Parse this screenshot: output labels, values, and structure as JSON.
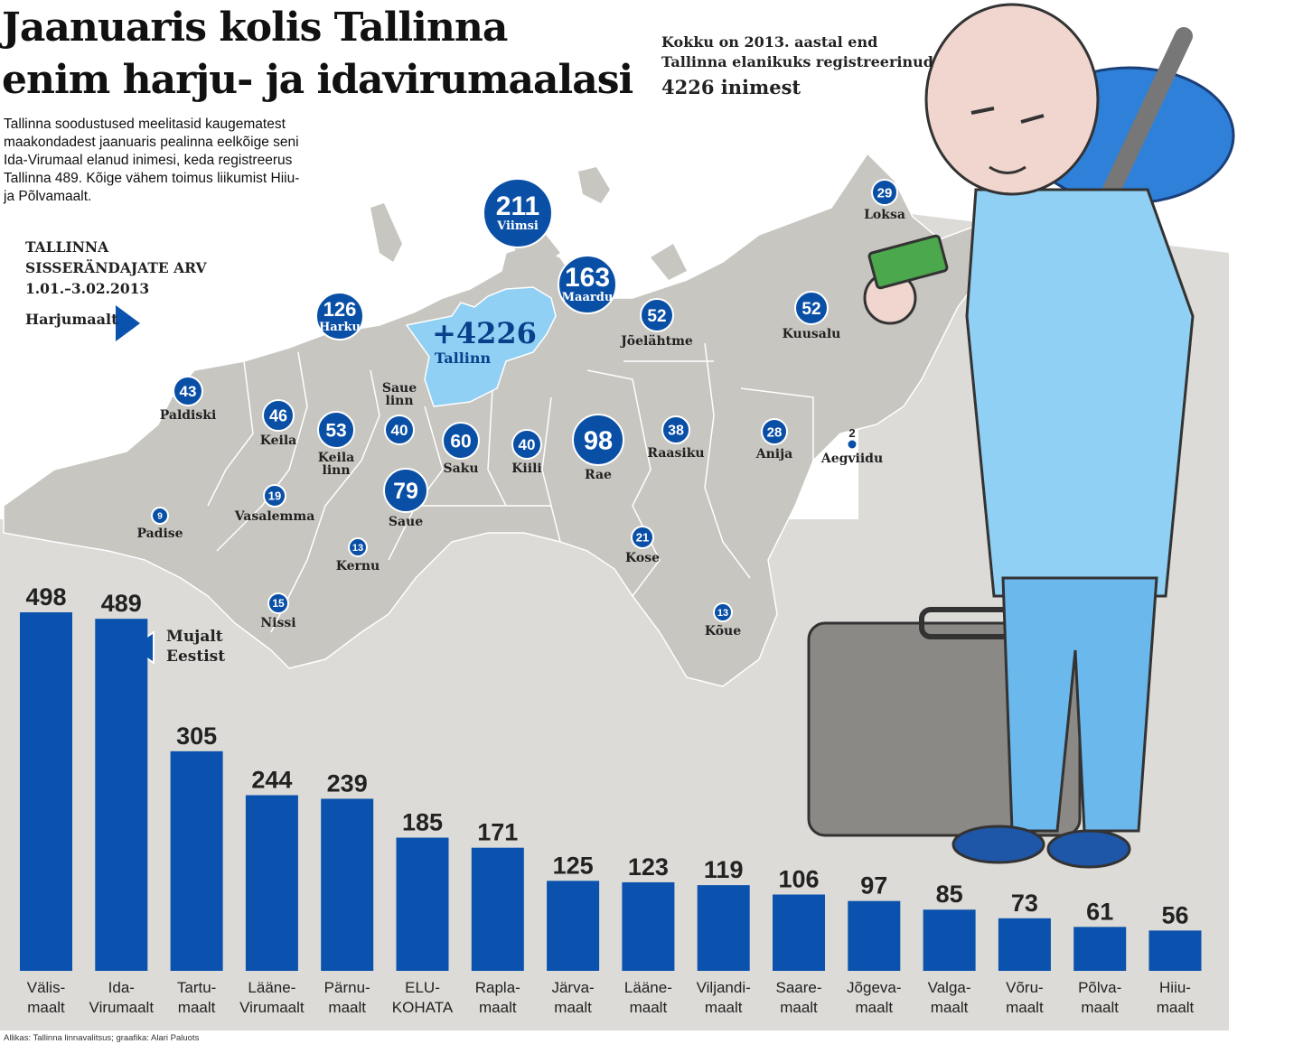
{
  "header": {
    "title_line1": "Jaanuaris kolis Tallinna",
    "title_line2": "enim harju- ja idavirumaalasi",
    "intro_lines": [
      "Tallinna soodustused meelitasid kaugematest",
      "maakondadest jaanuaris pealinna eelkõige seni",
      "Ida-Virumaal elanud inimesi, keda registreerus",
      "Tallinna 489. Kõige vähem toimus liikumist Hiiu-",
      "ja Põlvamaalt."
    ]
  },
  "total_note": {
    "line1": "Kokku on 2013. aastal end",
    "line2": "Tallinna elanikuks registreerinud",
    "line3": "4226 inimest"
  },
  "subtitle": {
    "line1": "TALLINNA",
    "line2": "SISSERÄNDAJATE ARV",
    "line3": "1.01.–3.02.2013"
  },
  "harjumaalt_label": "Harjumaalt",
  "mujalt_line1": "Mujalt",
  "mujalt_line2": "Eestist",
  "source": "Allikas: Tallinna linnavalitsus; graafika: Alari Paluots",
  "map": {
    "tallinn_value": "+4226",
    "tallinn_name": "Tallinn",
    "places": [
      {
        "name": "Viimsi",
        "value": "211"
      },
      {
        "name": "Maardu",
        "value": "163"
      },
      {
        "name": "Harku",
        "value": "126"
      },
      {
        "name": "Rae",
        "value": "98"
      },
      {
        "name": "Saue",
        "value": "79"
      },
      {
        "name": "Saku",
        "value": "60"
      },
      {
        "name": "Keila linn",
        "value": "53"
      },
      {
        "name": "Jõelähtme",
        "value": "52"
      },
      {
        "name": "Kuusalu",
        "value": "52"
      },
      {
        "name": "Keila",
        "value": "46"
      },
      {
        "name": "Paldiski",
        "value": "43"
      },
      {
        "name": "Saue linn",
        "value": "40"
      },
      {
        "name": "Kiili",
        "value": "40"
      },
      {
        "name": "Raasiku",
        "value": "38"
      },
      {
        "name": "Loksa",
        "value": "29"
      },
      {
        "name": "Anija",
        "value": "28"
      },
      {
        "name": "Kose",
        "value": "21"
      },
      {
        "name": "Vasalemma",
        "value": "19"
      },
      {
        "name": "Nissi",
        "value": "15"
      },
      {
        "name": "Kernu",
        "value": "13"
      },
      {
        "name": "Kõue",
        "value": "13"
      },
      {
        "name": "Padise",
        "value": "9"
      },
      {
        "name": "Aegviidu",
        "value": "2"
      }
    ]
  },
  "colors": {
    "bar": "#0a52ad",
    "bubble": "#0a4fa6",
    "tallinn": "#8fd0f4",
    "map_land": "#c6c4bf",
    "background": "#dddcd8"
  },
  "chart_data": {
    "type": "bar",
    "categories": [
      "Välis-maalt",
      "Ida-Virumaalt",
      "Tartu-maalt",
      "Lääne-Virumaalt",
      "Pärnu-maalt",
      "ELU-KOHATA",
      "Rapla-maalt",
      "Järva-maalt",
      "Lääne-maalt",
      "Viljandi-maalt",
      "Saare-maalt",
      "Jõgeva-maalt",
      "Valga-maalt",
      "Võru-maalt",
      "Põlva-maalt",
      "Hiiu-maalt"
    ],
    "labels": [
      [
        "Välis-",
        "maalt"
      ],
      [
        "Ida-",
        "Virumaalt"
      ],
      [
        "Tartu-",
        "maalt"
      ],
      [
        "Lääne-",
        "Virumaalt"
      ],
      [
        "Pärnu-",
        "maalt"
      ],
      [
        "ELU-",
        "KOHATA"
      ],
      [
        "Rapla-",
        "maalt"
      ],
      [
        "Järva-",
        "maalt"
      ],
      [
        "Lääne-",
        "maalt"
      ],
      [
        "Viljandi-",
        "maalt"
      ],
      [
        "Saare-",
        "maalt"
      ],
      [
        "Jõgeva-",
        "maalt"
      ],
      [
        "Valga-",
        "maalt"
      ],
      [
        "Võru-",
        "maalt"
      ],
      [
        "Põlva-",
        "maalt"
      ],
      [
        "Hiiu-",
        "maalt"
      ]
    ],
    "values": [
      498,
      489,
      305,
      244,
      239,
      185,
      171,
      125,
      123,
      119,
      106,
      97,
      85,
      73,
      61,
      56
    ],
    "title": "",
    "xlabel": "",
    "ylabel": "",
    "ylim": [
      0,
      500
    ]
  }
}
